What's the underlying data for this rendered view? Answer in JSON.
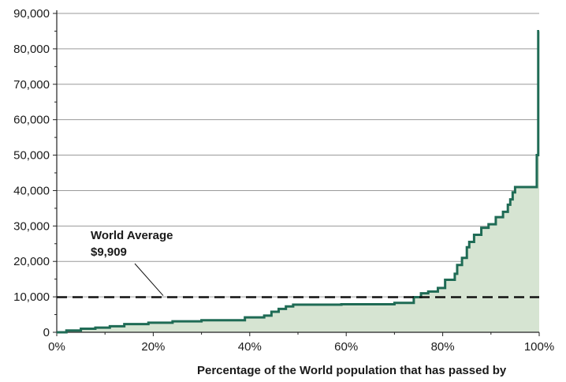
{
  "chart_data": {
    "type": "area",
    "title": "",
    "xlabel": "Percentage of the World population that has passed by",
    "ylabel": "",
    "xlim": [
      0,
      100
    ],
    "ylim": [
      0,
      90000
    ],
    "x_ticks": [
      0,
      20,
      40,
      60,
      80,
      100
    ],
    "x_tick_labels": [
      "0%",
      "20%",
      "40%",
      "60%",
      "80%",
      "100%"
    ],
    "y_ticks": [
      0,
      10000,
      20000,
      30000,
      40000,
      50000,
      60000,
      70000,
      80000,
      90000
    ],
    "y_tick_labels": [
      "0",
      "10,000",
      "20,000",
      "30,000",
      "40,000",
      "50,000",
      "60,000",
      "70,000",
      "80,000",
      "90,000"
    ],
    "grid": true,
    "series": [
      {
        "x": [
          0,
          2,
          2,
          5,
          5,
          8,
          8,
          11,
          11,
          14,
          14,
          19,
          19,
          24,
          24,
          30,
          30,
          39,
          39,
          43,
          43,
          44.5,
          44.5,
          46,
          46,
          47.5,
          47.5,
          49,
          49,
          59,
          59,
          70,
          70,
          74,
          74,
          75.5,
          75.5,
          77,
          77,
          79,
          79,
          80.5,
          80.5,
          82.5,
          82.5,
          83,
          83,
          84,
          84,
          85,
          85,
          85.5,
          85.5,
          86.5,
          86.5,
          88,
          88,
          89.5,
          89.5,
          91,
          91,
          92.5,
          92.5,
          93.5,
          93.5,
          94,
          94,
          94.5,
          94.5,
          95,
          95,
          99.5,
          99.5,
          99.8,
          99.8,
          100
        ],
        "values": [
          0,
          0,
          500,
          500,
          1000,
          1000,
          1300,
          1300,
          1700,
          1700,
          2300,
          2300,
          2700,
          2700,
          3100,
          3100,
          3400,
          3400,
          4200,
          4200,
          4700,
          4700,
          5800,
          5800,
          6600,
          6600,
          7300,
          7300,
          7800,
          7800,
          7900,
          7900,
          8300,
          8300,
          9900,
          9900,
          11000,
          11000,
          11500,
          11500,
          12500,
          12500,
          14800,
          14800,
          16500,
          16500,
          19000,
          19000,
          21000,
          21000,
          24000,
          24000,
          25500,
          25500,
          27500,
          27500,
          29500,
          29500,
          30500,
          30500,
          32500,
          32500,
          34000,
          34000,
          36000,
          36000,
          37500,
          37500,
          39500,
          39500,
          41000,
          41000,
          50000,
          50000,
          85000,
          85000
        ]
      }
    ],
    "annotations": [
      {
        "lines": [
          "World Average",
          "$9,909"
        ],
        "value": 9909
      }
    ],
    "colors": {
      "line": "#1f6b55",
      "fill": "#d6e4d2",
      "grid": "#9a9a9a",
      "average_line": "#111111",
      "text": "#1a1a1a"
    }
  }
}
